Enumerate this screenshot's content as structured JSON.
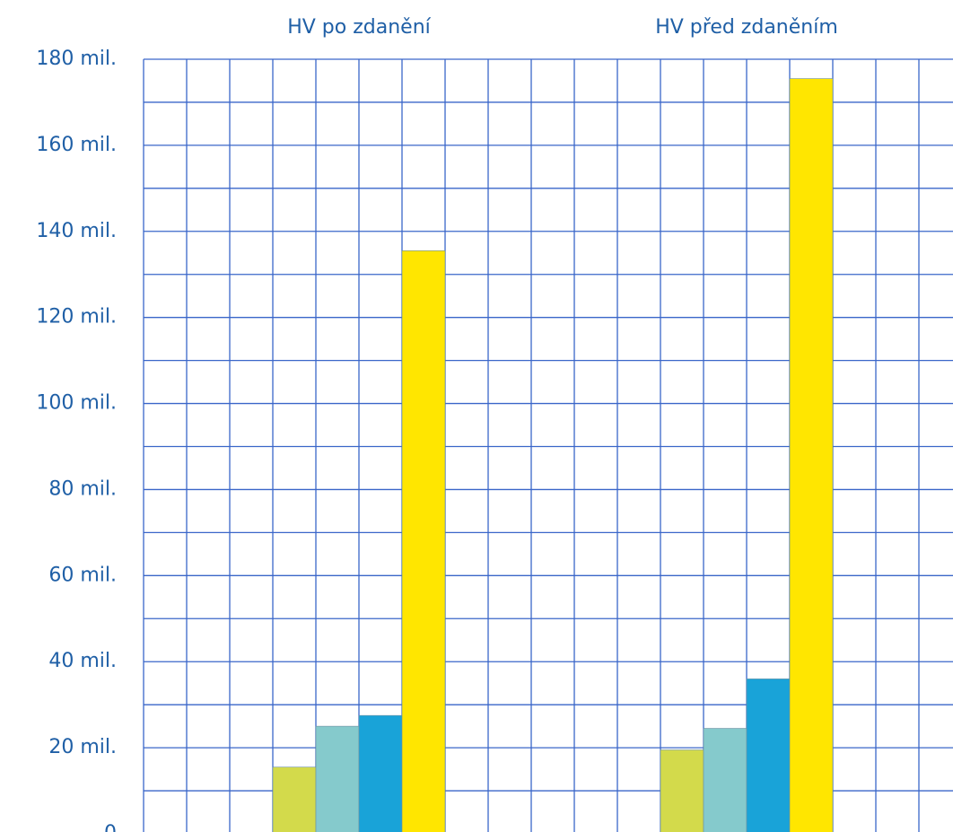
{
  "chart_data": {
    "type": "bar",
    "categories": [
      "HV po zdanění",
      "HV před zdaněním"
    ],
    "series": [
      {
        "values": [
          15500000,
          19500000
        ],
        "color": "#d3da4b"
      },
      {
        "values": [
          25000000,
          24500000
        ],
        "color": "#85cacc"
      },
      {
        "values": [
          27500000,
          36000000
        ],
        "color": "#19a3d8"
      },
      {
        "values": [
          135500000,
          175500000
        ],
        "color": "#ffe600"
      }
    ],
    "y_ticks": [
      "0",
      "20 mil.",
      "40 mil.",
      "60 mil.",
      "80 mil.",
      "100 mil.",
      "120 mil.",
      "140 mil.",
      "160 mil.",
      "180 mil."
    ],
    "ylim": [
      0,
      180000000
    ],
    "grid": true,
    "title": "",
    "xlabel": "",
    "ylabel": ""
  }
}
